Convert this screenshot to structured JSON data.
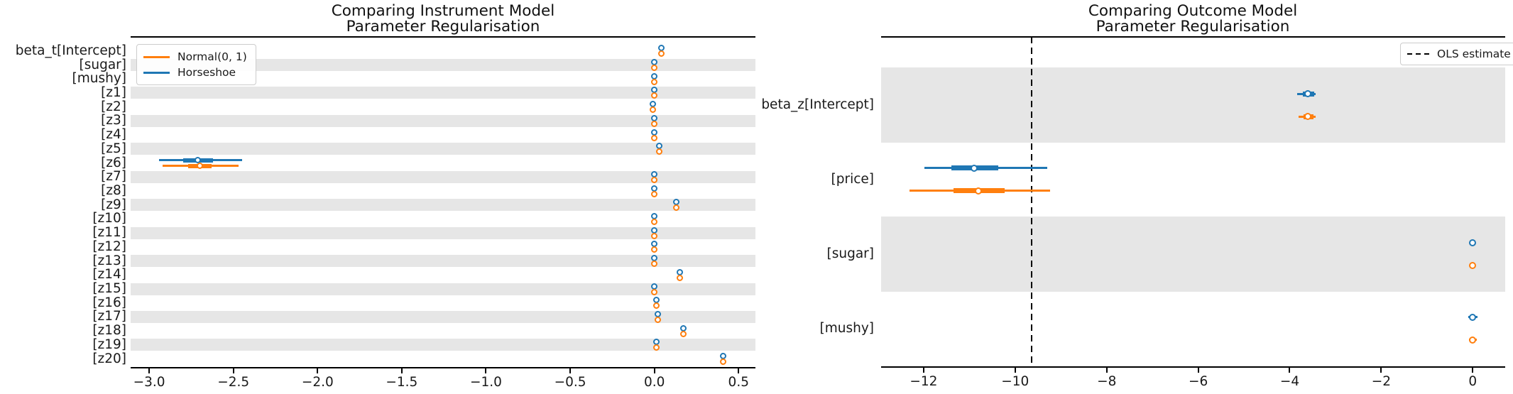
{
  "figure": {
    "colors": {
      "horseshoe_blue": "#1f77b4",
      "normal_orange": "#ff7f0e",
      "band_gray": "#e6e6e6",
      "ols_line": "#000000"
    }
  },
  "chart_data": [
    {
      "type": "forest",
      "title_lines": [
        "Comparing Instrument Model",
        "Parameter Regularisation"
      ],
      "legend": [
        {
          "label": "Normal(0, 1)",
          "series": "normal"
        },
        {
          "label": "Horseshoe",
          "series": "horseshoe"
        }
      ],
      "legend_position": "upper-left",
      "xlim": [
        -3.11,
        0.6
      ],
      "xticks": [
        -3.0,
        -2.5,
        -2.0,
        -1.5,
        -1.0,
        -0.5,
        0.0,
        0.5
      ],
      "xtick_labels": [
        "−3.0",
        "−2.5",
        "−2.0",
        "−1.5",
        "−1.0",
        "−0.5",
        "0.0",
        "0.5"
      ],
      "grid": false,
      "rows": [
        {
          "label": "beta_t[Intercept]",
          "horseshoe": {
            "median": 0.04
          },
          "normal": {
            "median": 0.04
          }
        },
        {
          "label": "[sugar]",
          "horseshoe": {
            "median": 0.0
          },
          "normal": {
            "median": 0.0
          }
        },
        {
          "label": "[mushy]",
          "horseshoe": {
            "median": 0.0
          },
          "normal": {
            "median": 0.0
          }
        },
        {
          "label": "[z1]",
          "horseshoe": {
            "median": 0.0
          },
          "normal": {
            "median": 0.0
          }
        },
        {
          "label": "[z2]",
          "horseshoe": {
            "median": -0.01
          },
          "normal": {
            "median": -0.01
          }
        },
        {
          "label": "[z3]",
          "horseshoe": {
            "median": 0.0
          },
          "normal": {
            "median": 0.0
          }
        },
        {
          "label": "[z4]",
          "horseshoe": {
            "median": 0.0
          },
          "normal": {
            "median": 0.0
          }
        },
        {
          "label": "[z5]",
          "horseshoe": {
            "median": 0.03
          },
          "normal": {
            "median": 0.03
          }
        },
        {
          "label": "[z6]",
          "horseshoe": {
            "median": -2.71,
            "hdi_94": [
              -2.94,
              -2.45
            ],
            "hdi_50": [
              -2.8,
              -2.62
            ]
          },
          "normal": {
            "median": -2.7,
            "hdi_94": [
              -2.92,
              -2.47
            ],
            "hdi_50": [
              -2.77,
              -2.63
            ]
          }
        },
        {
          "label": "[z7]",
          "horseshoe": {
            "median": 0.0
          },
          "normal": {
            "median": 0.0
          }
        },
        {
          "label": "[z8]",
          "horseshoe": {
            "median": 0.0
          },
          "normal": {
            "median": 0.0
          }
        },
        {
          "label": "[z9]",
          "horseshoe": {
            "median": 0.13
          },
          "normal": {
            "median": 0.13
          }
        },
        {
          "label": "[z10]",
          "horseshoe": {
            "median": 0.0
          },
          "normal": {
            "median": 0.0
          }
        },
        {
          "label": "[z11]",
          "horseshoe": {
            "median": 0.0
          },
          "normal": {
            "median": 0.0
          }
        },
        {
          "label": "[z12]",
          "horseshoe": {
            "median": 0.0
          },
          "normal": {
            "median": 0.0
          }
        },
        {
          "label": "[z13]",
          "horseshoe": {
            "median": 0.0
          },
          "normal": {
            "median": 0.0
          }
        },
        {
          "label": "[z14]",
          "horseshoe": {
            "median": 0.15
          },
          "normal": {
            "median": 0.15
          }
        },
        {
          "label": "[z15]",
          "horseshoe": {
            "median": 0.0
          },
          "normal": {
            "median": 0.0
          }
        },
        {
          "label": "[z16]",
          "horseshoe": {
            "median": 0.01
          },
          "normal": {
            "median": 0.01
          }
        },
        {
          "label": "[z17]",
          "horseshoe": {
            "median": 0.02
          },
          "normal": {
            "median": 0.02
          }
        },
        {
          "label": "[z18]",
          "horseshoe": {
            "median": 0.17
          },
          "normal": {
            "median": 0.17
          }
        },
        {
          "label": "[z19]",
          "horseshoe": {
            "median": 0.01
          },
          "normal": {
            "median": 0.01
          }
        },
        {
          "label": "[z20]",
          "horseshoe": {
            "median": 0.41
          },
          "normal": {
            "median": 0.41
          }
        }
      ]
    },
    {
      "type": "forest",
      "title_lines": [
        "Comparing Outcome Model",
        "Parameter Regularisation"
      ],
      "legend": [
        {
          "label": "OLS estimate",
          "series": "ols"
        }
      ],
      "legend_position": "upper-right",
      "vline": {
        "value": -9.64,
        "meaning": "OLS estimate"
      },
      "xlim": [
        -12.93,
        0.71
      ],
      "xticks": [
        -12,
        -10,
        -8,
        -6,
        -4,
        -2,
        0
      ],
      "xtick_labels": [
        "−12",
        "−10",
        "−8",
        "−6",
        "−4",
        "−2",
        "0"
      ],
      "grid": false,
      "rows": [
        {
          "label": "beta_z[Intercept]",
          "horseshoe": {
            "median": -3.6,
            "hdi_94": [
              -3.84,
              -3.43
            ],
            "hdi_50": [
              -3.71,
              -3.47
            ]
          },
          "normal": {
            "median": -3.6,
            "hdi_94": [
              -3.8,
              -3.43
            ],
            "hdi_50": [
              -3.69,
              -3.48
            ]
          }
        },
        {
          "label": "[price]",
          "horseshoe": {
            "median": -10.9,
            "hdi_94": [
              -11.98,
              -9.3
            ],
            "hdi_50": [
              -11.4,
              -10.37
            ]
          },
          "normal": {
            "median": -10.81,
            "hdi_94": [
              -12.31,
              -9.24
            ],
            "hdi_50": [
              -11.35,
              -10.23
            ]
          }
        },
        {
          "label": "[sugar]",
          "horseshoe": {
            "median": 0.0
          },
          "normal": {
            "median": 0.0
          }
        },
        {
          "label": "[mushy]",
          "horseshoe": {
            "median": 0.0,
            "hdi_94": [
              -0.09,
              0.1
            ]
          },
          "normal": {
            "median": 0.0,
            "hdi_94": [
              -0.08,
              0.09
            ]
          }
        }
      ]
    }
  ]
}
